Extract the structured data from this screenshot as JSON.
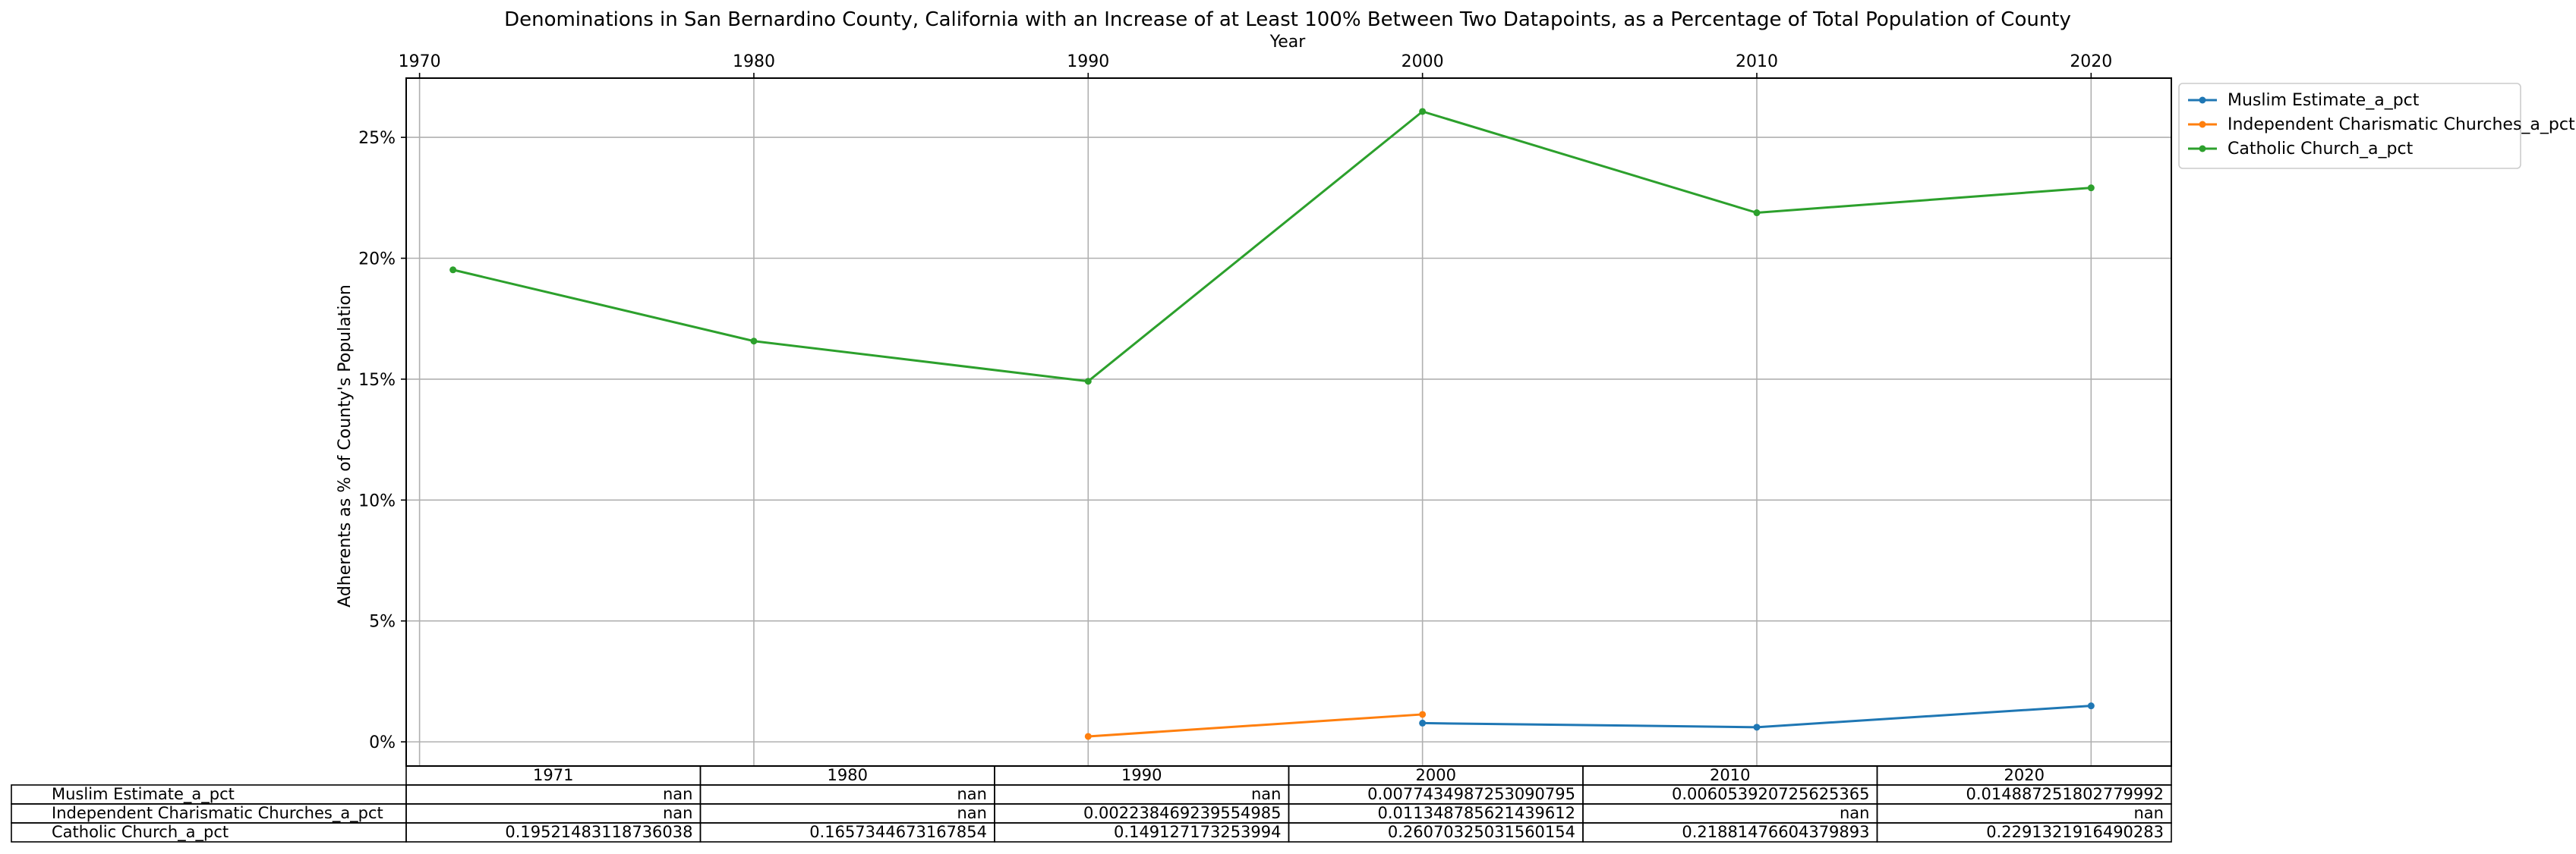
{
  "chart_data": {
    "type": "line",
    "title": "Denominations in San Bernardino County, California with an Increase of at Least 100% Between Two Datapoints, as a Percentage of Total Population of County",
    "xlabel": "Year",
    "ylabel": "Adherents as % of County's Population",
    "x_ticks": [
      "1970",
      "1980",
      "1990",
      "2000",
      "2010",
      "2020"
    ],
    "y_ticks": [
      "0%",
      "5%",
      "10%",
      "15%",
      "20%",
      "25%"
    ],
    "xlim": [
      1969.6,
      2022.4
    ],
    "ylim": [
      -0.01,
      0.2745
    ],
    "grid": true,
    "legend_position": "upper right, outside plot",
    "x": [
      1971,
      1980,
      1990,
      2000,
      2010,
      2020
    ],
    "series": [
      {
        "name": "Muslim Estimate_a_pct",
        "color": "#1f77b4",
        "values": [
          null,
          null,
          null,
          0.00774349872530908,
          0.006053920725625365,
          0.014887251802779992
        ]
      },
      {
        "name": "Independent Charismatic Churches_a_pct",
        "color": "#ff7f0e",
        "values": [
          null,
          null,
          0.002238469239554985,
          0.011348785621439612,
          null,
          null
        ]
      },
      {
        "name": "Catholic Church_a_pct",
        "color": "#2ca02c",
        "values": [
          0.19521483118736038,
          0.1657344673167854,
          0.149127173253994,
          0.26070325031560154,
          0.21881476604379893,
          0.2291321916490283
        ]
      }
    ],
    "table": {
      "col_labels": [
        "1971",
        "1980",
        "1990",
        "2000",
        "2010",
        "2020"
      ],
      "rows": [
        {
          "label": "Muslim Estimate_a_pct",
          "cells": [
            "nan",
            "nan",
            "nan",
            "0.0077434987253090795",
            "0.006053920725625365",
            "0.014887251802779992"
          ]
        },
        {
          "label": "Independent Charismatic Churches_a_pct",
          "cells": [
            "nan",
            "nan",
            "0.002238469239554985",
            "0.011348785621439612",
            "nan",
            "nan"
          ]
        },
        {
          "label": "Catholic Church_a_pct",
          "cells": [
            "0.19521483118736038",
            "0.1657344673167854",
            "0.149127173253994",
            "0.26070325031560154",
            "0.21881476604379893",
            "0.2291321916490283"
          ]
        }
      ]
    }
  }
}
